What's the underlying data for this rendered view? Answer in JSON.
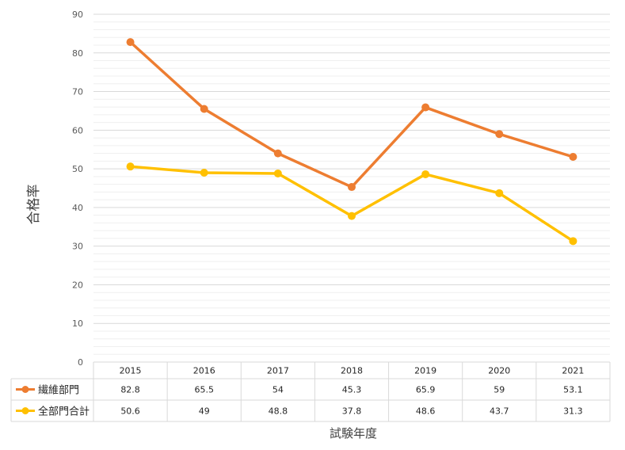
{
  "chart_data": {
    "type": "line",
    "title": "",
    "xlabel": "試験年度",
    "ylabel": "合格率",
    "ylim": [
      0,
      90
    ],
    "yticks": [
      "0",
      "10",
      "20",
      "30",
      "40",
      "50",
      "60",
      "70",
      "80",
      "90"
    ],
    "categories": [
      "2015",
      "2016",
      "2017",
      "2018",
      "2019",
      "2020",
      "2021"
    ],
    "grid": true,
    "legend": "data-table",
    "series": [
      {
        "name": "繊維部門",
        "color": "#ed7d31",
        "values": [
          82.8,
          65.5,
          54,
          45.3,
          65.9,
          59,
          53.1
        ],
        "labels": [
          "82.8",
          "65.5",
          "54",
          "45.3",
          "65.9",
          "59",
          "53.1"
        ]
      },
      {
        "name": "全部門合計",
        "color": "#ffc000",
        "values": [
          50.6,
          49,
          48.8,
          37.8,
          48.6,
          43.7,
          31.3
        ],
        "labels": [
          "50.6",
          "49",
          "48.8",
          "37.8",
          "48.6",
          "43.7",
          "31.3"
        ]
      }
    ]
  }
}
